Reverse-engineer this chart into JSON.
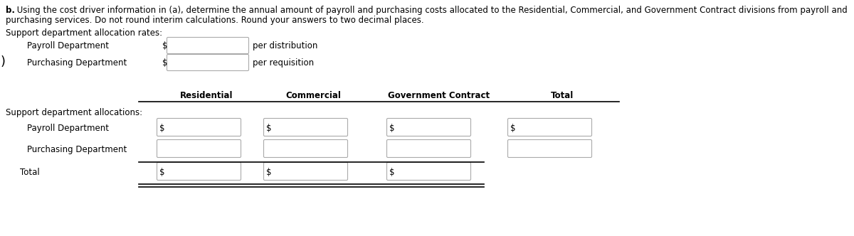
{
  "title_bold": "b.",
  "title_text": " Using the cost driver information in (a), determine the annual amount of payroll and purchasing costs allocated to the Residential, Commercial, and Government Contract divisions from payroll and",
  "title_line2": "purchasing services. Do not round interim calculations. Round your answers to two decimal places.",
  "section1_header": "Support department allocation rates:",
  "payroll_label": "Payroll Department",
  "payroll_suffix": "per distribution",
  "purchasing_label": "Purchasing Department",
  "purchasing_suffix": "per requisition",
  "col_headers": [
    "Residential",
    "Commercial",
    "Government Contract",
    "Total"
  ],
  "section2_header": "Support department allocations:",
  "row_labels": [
    "Payroll Department",
    "Purchasing Department",
    "Total"
  ],
  "bg_color": "#ffffff",
  "text_color": "#000000",
  "font_size": 8.5
}
